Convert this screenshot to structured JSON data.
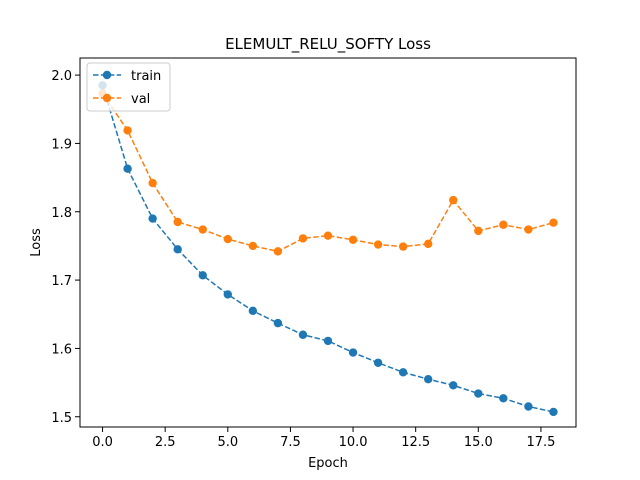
{
  "chart_data": {
    "type": "line",
    "title": "ELEMULT_RELU_SOFTY Loss",
    "xlabel": "Epoch",
    "ylabel": "Loss",
    "xlim": [
      -0.9,
      18.9
    ],
    "ylim": [
      1.485,
      2.025
    ],
    "xticks": [
      0.0,
      2.5,
      5.0,
      7.5,
      10.0,
      12.5,
      15.0,
      17.5
    ],
    "xtick_labels": [
      "0.0",
      "2.5",
      "5.0",
      "7.5",
      "10.0",
      "12.5",
      "15.0",
      "17.5"
    ],
    "yticks": [
      1.5,
      1.6,
      1.7,
      1.8,
      1.9,
      2.0
    ],
    "ytick_labels": [
      "1.5",
      "1.6",
      "1.7",
      "1.8",
      "1.9",
      "2.0"
    ],
    "grid": false,
    "legend": "top-left",
    "x": [
      0,
      1,
      2,
      3,
      4,
      5,
      6,
      7,
      8,
      9,
      10,
      11,
      12,
      13,
      14,
      15,
      16,
      17,
      18
    ],
    "series": [
      {
        "name": "train",
        "color": "#1f77b4",
        "marker": "circle",
        "linestyle": "dashed",
        "values": [
          1.985,
          1.863,
          1.79,
          1.745,
          1.707,
          1.679,
          1.655,
          1.637,
          1.62,
          1.611,
          1.594,
          1.579,
          1.565,
          1.555,
          1.546,
          1.534,
          1.527,
          1.515,
          1.507
        ]
      },
      {
        "name": "val",
        "color": "#ff7f0e",
        "marker": "circle",
        "linestyle": "dashed",
        "values": [
          1.973,
          1.919,
          1.842,
          1.785,
          1.774,
          1.76,
          1.75,
          1.742,
          1.761,
          1.765,
          1.759,
          1.752,
          1.749,
          1.753,
          1.817,
          1.772,
          1.781,
          1.774,
          1.784
        ]
      }
    ]
  }
}
